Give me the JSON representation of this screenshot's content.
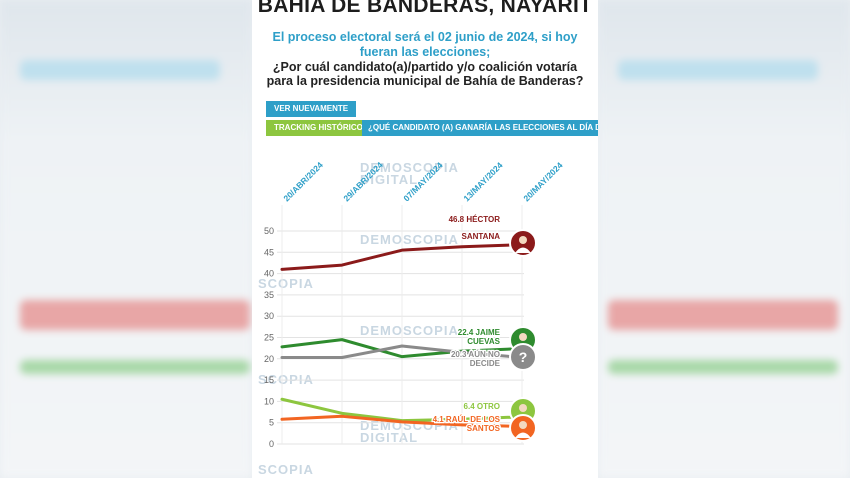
{
  "header": {
    "title": "BAHIA DE BANDERAS, NAYARIT",
    "subtitle": "El proceso electoral será el 02 junio de 2024, si hoy fueran las elecciones;",
    "question": "¿Por cuál candidato(a)/partido y/o coalición votaría para la presidencia municipal de Bahía de Banderas?"
  },
  "buttons": {
    "ver": "VER NUEVAMENTE",
    "tracking": "TRACKING HISTÓRICO",
    "question_tab": "¿QUÉ CANDIDATO (A) GANARÍA LAS ELECCIONES AL DÍA DE HOY?"
  },
  "watermark": {
    "line1": "DEMOSCOPIA",
    "line2": "DIGITAL",
    "short": "SCOPIA"
  },
  "colors": {
    "accent": "#2e9fc8",
    "green_btn": "#8dc63f",
    "santana": "#8b1a1a",
    "cuevas": "#2e8b2e",
    "no_decide": "#8a8a8a",
    "otro": "#8dc63f",
    "raul": "#f26522"
  },
  "chart_data": {
    "type": "line",
    "x": [
      "20/ABR/2024",
      "29/ABR/2024",
      "07/MAY/2024",
      "13/MAY/2024",
      "20/MAY/2024"
    ],
    "ylim": [
      0,
      50
    ],
    "yticks": [
      0,
      5,
      10,
      15,
      20,
      25,
      30,
      35,
      40,
      45,
      50
    ],
    "grid": true,
    "series": [
      {
        "name": "HÉCTOR SANTANA",
        "label": "46.8 HÉCTOR SANTANA",
        "color": "#8b1a1a",
        "values": [
          41,
          42,
          45.5,
          46.3,
          46.8
        ],
        "icon": "candidate-photo-icon"
      },
      {
        "name": "JAIME CUEVAS",
        "label": "22.4 JAIME CUEVAS",
        "color": "#2e8b2e",
        "values": [
          22.8,
          24.5,
          20.5,
          21.8,
          22.4
        ],
        "icon": "candidate-photo-icon"
      },
      {
        "name": "AÚN NO DECIDE",
        "label": "20.3 AÚN NO DECIDE",
        "color": "#8a8a8a",
        "values": [
          20.3,
          20.3,
          23,
          21.5,
          20.3
        ],
        "icon": "question-mark-icon"
      },
      {
        "name": "OTRO",
        "label": "6.4 OTRO",
        "color": "#8dc63f",
        "values": [
          10.5,
          7.2,
          5.5,
          5.8,
          6.4
        ],
        "icon": "person-icon"
      },
      {
        "name": "RAÚL DE LOS SANTOS",
        "label": "4.1 RAÚL DE LOS SANTOS",
        "color": "#f26522",
        "values": [
          5.8,
          6.5,
          5.2,
          4.5,
          4.1
        ],
        "icon": "candidate-photo-icon"
      }
    ]
  }
}
